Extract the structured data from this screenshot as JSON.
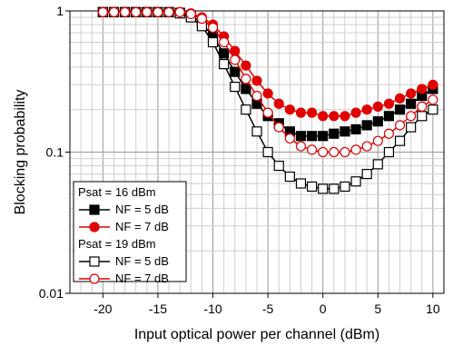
{
  "chart_data": {
    "type": "line",
    "xlabel": "Input optical power per channel (dBm)",
    "ylabel": "Blocking probability",
    "xlim": [
      -23,
      11
    ],
    "ylim": [
      0.01,
      1
    ],
    "yscale": "log",
    "x_ticks": [
      -20,
      -15,
      -10,
      -5,
      0,
      5,
      10
    ],
    "y_ticks": [
      {
        "value": 0.01,
        "label": "0.01"
      },
      {
        "value": 0.1,
        "label": "0.1"
      },
      {
        "value": 1,
        "label": "1"
      }
    ],
    "grid": true,
    "legend_position": "bottom-left",
    "x": [
      -20,
      -19,
      -18,
      -17,
      -16,
      -15,
      -14,
      -13,
      -12,
      -11,
      -10,
      -9,
      -8,
      -7,
      -6,
      -5,
      -4,
      -3,
      -2,
      -1,
      0,
      1,
      2,
      3,
      4,
      5,
      6,
      7,
      8,
      9,
      10
    ],
    "series": [
      {
        "group": "Psat = 16 dBm",
        "name": "NF = 5 dB",
        "color": "#000000",
        "marker": "square-filled",
        "values": [
          0.98,
          0.98,
          0.98,
          0.98,
          0.98,
          0.98,
          0.98,
          0.97,
          0.93,
          0.82,
          0.66,
          0.5,
          0.37,
          0.28,
          0.22,
          0.18,
          0.16,
          0.14,
          0.13,
          0.13,
          0.13,
          0.135,
          0.14,
          0.145,
          0.155,
          0.165,
          0.18,
          0.2,
          0.22,
          0.25,
          0.28
        ]
      },
      {
        "group": "Psat = 16 dBm",
        "name": "NF = 7 dB",
        "color": "#e00000",
        "marker": "circle-filled",
        "values": [
          0.98,
          0.98,
          0.98,
          0.98,
          0.98,
          0.98,
          0.98,
          0.98,
          0.96,
          0.9,
          0.8,
          0.66,
          0.52,
          0.41,
          0.32,
          0.26,
          0.22,
          0.2,
          0.19,
          0.19,
          0.18,
          0.18,
          0.18,
          0.19,
          0.2,
          0.21,
          0.22,
          0.24,
          0.26,
          0.28,
          0.3
        ]
      },
      {
        "group": "Psat = 19 dBm",
        "name": "NF = 5 dB",
        "color": "#000000",
        "marker": "square-open",
        "values": [
          0.98,
          0.98,
          0.98,
          0.98,
          0.98,
          0.98,
          0.98,
          0.96,
          0.9,
          0.78,
          0.6,
          0.42,
          0.29,
          0.2,
          0.14,
          0.1,
          0.08,
          0.067,
          0.06,
          0.057,
          0.055,
          0.055,
          0.057,
          0.062,
          0.07,
          0.082,
          0.1,
          0.12,
          0.15,
          0.18,
          0.2
        ]
      },
      {
        "group": "Psat = 19 dBm",
        "name": "NF = 7 dB",
        "color": "#e00000",
        "marker": "circle-open",
        "values": [
          0.98,
          0.98,
          0.98,
          0.98,
          0.98,
          0.98,
          0.98,
          0.98,
          0.95,
          0.88,
          0.76,
          0.6,
          0.45,
          0.33,
          0.25,
          0.19,
          0.15,
          0.125,
          0.11,
          0.104,
          0.1,
          0.1,
          0.1,
          0.104,
          0.11,
          0.12,
          0.135,
          0.155,
          0.18,
          0.21,
          0.235
        ]
      }
    ],
    "legend": {
      "groups": [
        {
          "title": "Psat = 16 dBm",
          "entries": [
            "NF = 5 dB",
            "NF = 7 dB"
          ]
        },
        {
          "title": "Psat = 19 dBm",
          "entries": [
            "NF = 5 dB",
            "NF = 7 dB"
          ]
        }
      ]
    }
  }
}
